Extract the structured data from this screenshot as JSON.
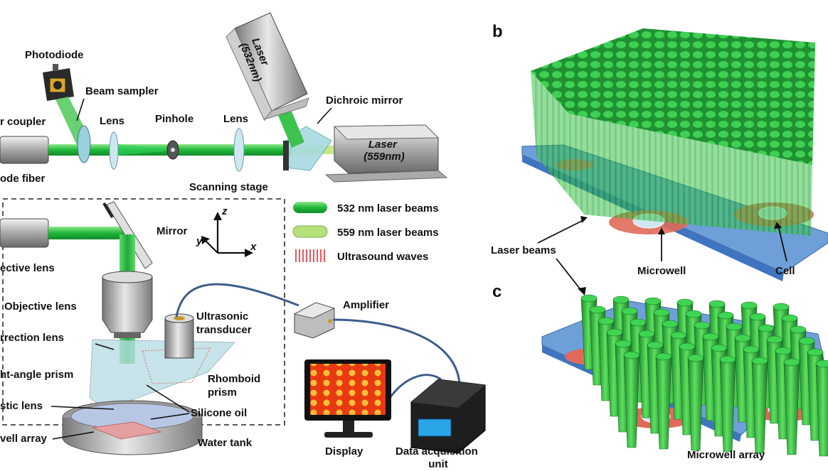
{
  "panels": {
    "b": "b",
    "c": "c"
  },
  "labels": {
    "photodiode": "Photodiode",
    "beam_sampler": "Beam sampler",
    "coupler": "r coupler",
    "lens_1": "Lens",
    "pinhole": "Pinhole",
    "lens_2": "Lens",
    "laser_532": "Laser\n(532nm)",
    "dichroic_mirror": "Dichroic mirror",
    "laser_559": "Laser\n(559nm)",
    "mode_fiber": "ode fiber",
    "scanning_stage": "Scanning stage",
    "mirror": "Mirror",
    "objective_lens_left": "ective lens",
    "objective_lens": "Objective lens",
    "correction_lens": "rrection lens",
    "right_angle_prism": "ht-angle prism",
    "acoustic_lens": "stic lens",
    "microwell_array_left": "vell array",
    "ultrasonic_transducer": "Ultrasonic\ntransducer",
    "rhomboid_prism": "Rhomboid\nprism",
    "silicone_oil": "Silicone oil",
    "water_tank": "Water tank",
    "amplifier": "Amplifier",
    "display": "Display",
    "daq_unit": "Data acquisition\nunit",
    "laser_beams": "Laser beams",
    "microwell": "Microwell",
    "cell": "Cell",
    "microwell_array": "Microwell array",
    "axis_x": "x",
    "axis_y": "y",
    "axis_z": "z"
  },
  "legend": [
    {
      "label": "532 nm laser beams",
      "color": "#1f9a3a"
    },
    {
      "label": "559 nm laser beams",
      "color": "#a6d96a"
    },
    {
      "label": "Ultrasound waves",
      "color": "#e8585c"
    }
  ],
  "colors": {
    "green_beam": "#22c43a",
    "light_green": "#b6e07a",
    "blue_plate": "#6f9fd8",
    "microwell_red": "#e06a5a",
    "prism": "#b7dde3",
    "dashed_box": "#444444"
  }
}
